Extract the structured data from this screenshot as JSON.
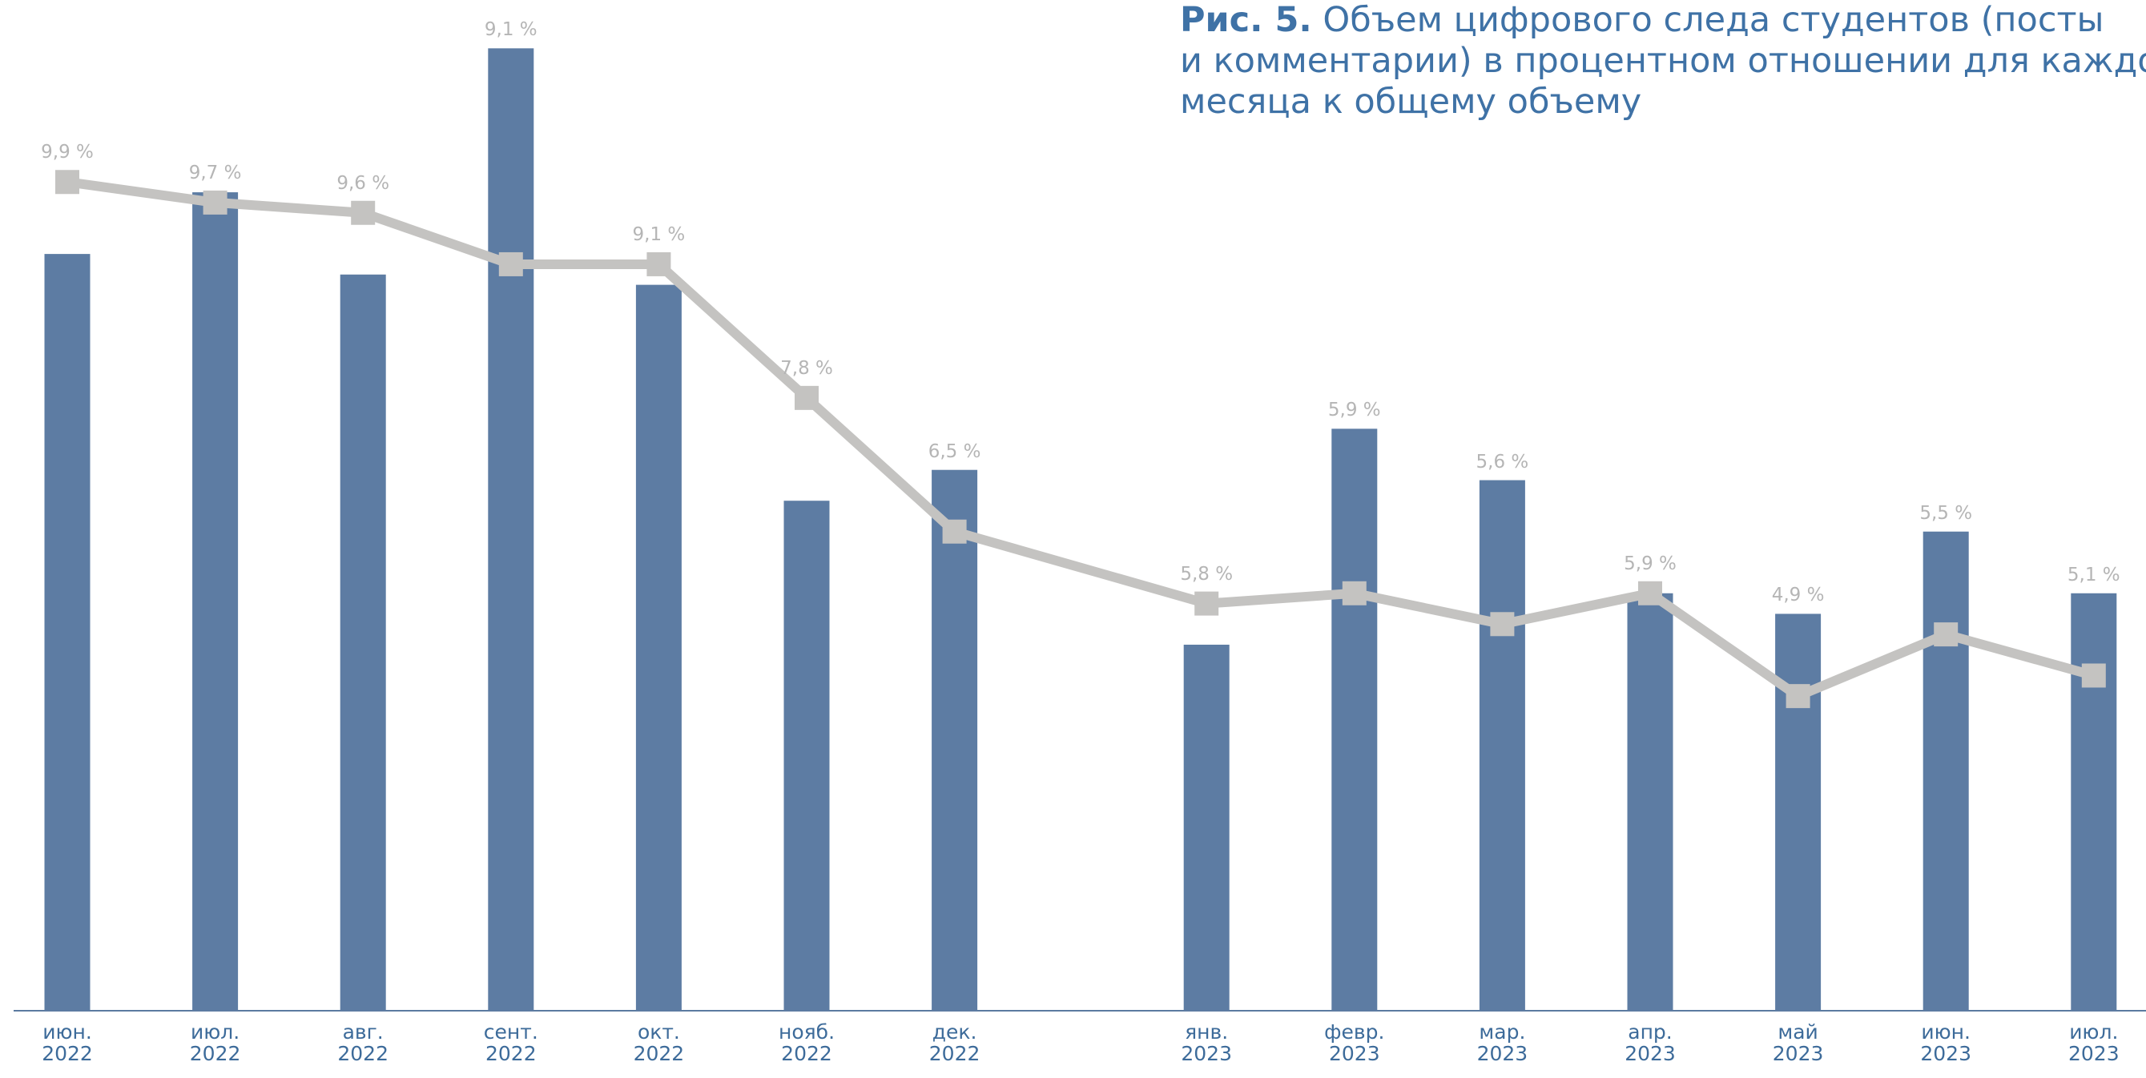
{
  "chart_data": {
    "type": "bar_line",
    "figure_label": "Рис. 5.",
    "title": "Объем цифрового следа студентов (посты\nи комментарии) в процентном отношении для каждого\nмесяца к общему объему",
    "categories": [
      "июн.\n2022",
      "июл.\n2022",
      "авг.\n2022",
      "сент.\n2022",
      "окт.\n2022",
      "нояб.\n2022",
      "дек.\n2022",
      "янв.\n2023",
      "февр.\n2023",
      "мар.\n2023",
      "апр.\n2023",
      "май\n2023",
      "июн.\n2023",
      "июл.\n2023"
    ],
    "ylim": [
      1.84,
      11.67
    ],
    "series": [
      {
        "type": "bar",
        "color": "#5d7ca3",
        "values": [
          9.2,
          9.8,
          9.0,
          11.2,
          8.9,
          6.8,
          7.1,
          5.4,
          7.5,
          7.0,
          5.9,
          5.7,
          6.5,
          5.9
        ]
      },
      {
        "type": "line",
        "color": "#c4c3c1",
        "values": [
          9.9,
          9.7,
          9.6,
          9.1,
          9.1,
          7.8,
          6.5,
          5.8,
          5.9,
          5.6,
          5.9,
          4.9,
          5.5,
          5.1
        ],
        "value_labels": [
          "9,9 %",
          "9,7 %",
          "9,6 %",
          "9,1 %",
          "9,1 %",
          "7,8 %",
          "6,5 %",
          "5,8 %",
          "5,9 %",
          "5,6 %",
          "5,9 %",
          "4,9 %",
          "5,5 %",
          "5,1 %"
        ]
      }
    ]
  }
}
